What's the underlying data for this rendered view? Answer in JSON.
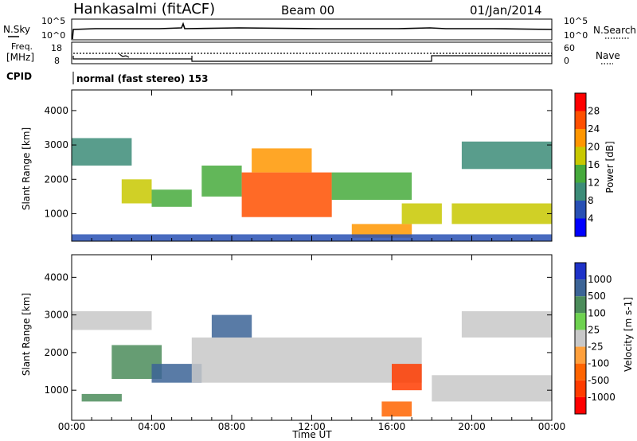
{
  "header": {
    "station": "Hankasalmi (fitACF)",
    "beam": "Beam 00",
    "date": "01/Jan/2014"
  },
  "noise_panel": {
    "left_label": "N.Sky",
    "right_label": "N.Search",
    "left_ticks": [
      "10^5",
      "10^0"
    ],
    "right_ticks": [
      "10^5",
      "10^0"
    ]
  },
  "freq_panel": {
    "left_label_1": "Freq.",
    "left_label_2": "[MHz]",
    "left_ticks": [
      "18",
      "8"
    ],
    "right_label": "Nave",
    "right_ticks": [
      "60",
      "0"
    ]
  },
  "cpid": {
    "label": "CPID",
    "value": "normal (fast stereo) 153"
  },
  "time_axis": {
    "title": "Time UT",
    "ticks": [
      "00:00",
      "04:00",
      "08:00",
      "12:00",
      "16:00",
      "20:00",
      "00:00"
    ]
  },
  "colors": {
    "power_scale": [
      "#0000ff",
      "#2850b4",
      "#3c8c78",
      "#46aa3c",
      "#c8c800",
      "#ff9600",
      "#ff5000",
      "#ff0000"
    ],
    "velocity_scale": [
      "#1e32c8",
      "#3c6496",
      "#4b8c5a",
      "#6ed250",
      "#c8c8c8",
      "#ffa03c",
      "#ff6400",
      "#ff3c00",
      "#ff0000"
    ]
  },
  "chart_data": [
    {
      "type": "heatmap",
      "title": "",
      "xlabel": "Time UT",
      "ylabel": "Slant Range [km]",
      "xlim": [
        0,
        24
      ],
      "ylim": [
        200,
        4600
      ],
      "x_ticks": [
        "00:00",
        "04:00",
        "08:00",
        "12:00",
        "16:00",
        "20:00",
        "00:00"
      ],
      "y_ticks": [
        "1000",
        "2000",
        "3000",
        "4000"
      ],
      "colorbar": {
        "label": "Power [dB]",
        "ticks": [
          "4",
          "8",
          "12",
          "16",
          "20",
          "24",
          "28"
        ],
        "range": [
          0,
          30
        ]
      },
      "regions": [
        {
          "t0": 0.0,
          "t1": 3.0,
          "r0": 2400,
          "r1": 3200,
          "value": 8
        },
        {
          "t0": 2.5,
          "t1": 4.0,
          "r0": 1300,
          "r1": 2000,
          "value": 16
        },
        {
          "t0": 4.0,
          "t1": 6.0,
          "r0": 1200,
          "r1": 1700,
          "value": 14
        },
        {
          "t0": 6.5,
          "t1": 8.5,
          "r0": 1500,
          "r1": 2400,
          "value": 12
        },
        {
          "t0": 8.5,
          "t1": 13.0,
          "r0": 900,
          "r1": 2200,
          "value": 26
        },
        {
          "t0": 9.0,
          "t1": 12.0,
          "r0": 2200,
          "r1": 2900,
          "value": 22
        },
        {
          "t0": 13.0,
          "t1": 17.0,
          "r0": 1400,
          "r1": 2200,
          "value": 12
        },
        {
          "t0": 14.0,
          "t1": 17.0,
          "r0": 300,
          "r1": 700,
          "value": 20
        },
        {
          "t0": 16.5,
          "t1": 18.5,
          "r0": 700,
          "r1": 1300,
          "value": 18
        },
        {
          "t0": 19.0,
          "t1": 24.0,
          "r0": 700,
          "r1": 1300,
          "value": 16
        },
        {
          "t0": 19.5,
          "t1": 24.0,
          "r0": 2300,
          "r1": 3100,
          "value": 8
        },
        {
          "t0": 0.0,
          "t1": 24.0,
          "r0": 200,
          "r1": 400,
          "value": 6
        }
      ]
    },
    {
      "type": "heatmap",
      "title": "",
      "xlabel": "Time UT",
      "ylabel": "Slant Range [km]",
      "xlim": [
        0,
        24
      ],
      "ylim": [
        200,
        4600
      ],
      "x_ticks": [
        "00:00",
        "04:00",
        "08:00",
        "12:00",
        "16:00",
        "20:00",
        "00:00"
      ],
      "y_ticks": [
        "1000",
        "2000",
        "3000",
        "4000"
      ],
      "colorbar": {
        "label": "Velocity [m s-1]",
        "ticks": [
          "1000",
          "500",
          "100",
          "25",
          "-25",
          "-100",
          "-500",
          "-1000"
        ]
      },
      "regions": [
        {
          "t0": 0.0,
          "t1": 4.0,
          "r0": 2600,
          "r1": 3100,
          "value": 0
        },
        {
          "t0": 2.0,
          "t1": 4.5,
          "r0": 1300,
          "r1": 2200,
          "value": 200
        },
        {
          "t0": 0.5,
          "t1": 2.5,
          "r0": 700,
          "r1": 900,
          "value": 150
        },
        {
          "t0": 4.0,
          "t1": 6.5,
          "r0": 1200,
          "r1": 1700,
          "value": 300
        },
        {
          "t0": 7.0,
          "t1": 9.0,
          "r0": 2400,
          "r1": 3000,
          "value": 300
        },
        {
          "t0": 6.0,
          "t1": 17.5,
          "r0": 1200,
          "r1": 2400,
          "value": 0
        },
        {
          "t0": 15.5,
          "t1": 17.0,
          "r0": 300,
          "r1": 700,
          "value": -200
        },
        {
          "t0": 16.0,
          "t1": 17.5,
          "r0": 1000,
          "r1": 1700,
          "value": -300
        },
        {
          "t0": 18.0,
          "t1": 24.0,
          "r0": 700,
          "r1": 1400,
          "value": 0
        },
        {
          "t0": 19.5,
          "t1": 24.0,
          "r0": 2400,
          "r1": 3100,
          "value": 0
        }
      ]
    }
  ]
}
